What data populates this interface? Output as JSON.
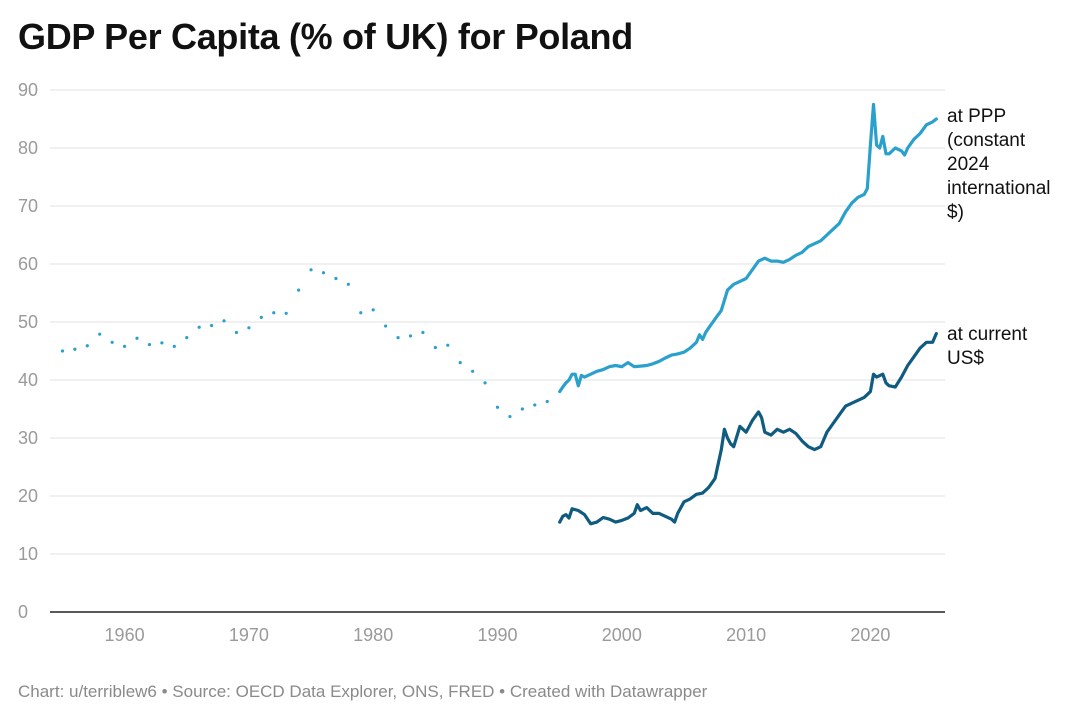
{
  "title": "GDP Per Capita (% of UK) for Poland",
  "footer": "Chart: u/terriblew6 • Source: OECD Data Explorer, ONS, FRED • Created with Datawrapper",
  "chart_data": {
    "type": "line",
    "title": "GDP Per Capita (% of UK) for Poland",
    "xlabel": "",
    "ylabel": "",
    "xlim": [
      1954,
      2026
    ],
    "ylim": [
      0,
      90
    ],
    "x_ticks": [
      1960,
      1970,
      1980,
      1990,
      2000,
      2010,
      2020
    ],
    "y_ticks": [
      0,
      10,
      20,
      30,
      40,
      50,
      60,
      70,
      80,
      90
    ],
    "grid": "horizontal",
    "series": [
      {
        "name": "at PPP (constant 2024 international $)",
        "label_lines": [
          "at PPP",
          "(constant",
          "2024",
          "international",
          "$)"
        ],
        "color": "#2aa0cd",
        "style": "dotted",
        "points": [
          [
            1955,
            45.0
          ],
          [
            1956,
            45.3
          ],
          [
            1957,
            45.9
          ],
          [
            1958,
            47.9
          ],
          [
            1959,
            46.5
          ],
          [
            1960,
            45.8
          ],
          [
            1961,
            47.2
          ],
          [
            1962,
            46.1
          ],
          [
            1963,
            46.4
          ],
          [
            1964,
            45.8
          ],
          [
            1965,
            47.3
          ],
          [
            1966,
            49.1
          ],
          [
            1967,
            49.4
          ],
          [
            1968,
            50.2
          ],
          [
            1969,
            48.2
          ],
          [
            1970,
            49.0
          ],
          [
            1971,
            50.8
          ],
          [
            1972,
            51.6
          ],
          [
            1973,
            51.5
          ],
          [
            1974,
            55.5
          ],
          [
            1975,
            59.0
          ],
          [
            1976,
            58.5
          ],
          [
            1977,
            57.5
          ],
          [
            1978,
            56.5
          ],
          [
            1979,
            51.6
          ],
          [
            1980,
            52.1
          ],
          [
            1981,
            49.3
          ],
          [
            1982,
            47.3
          ],
          [
            1983,
            47.6
          ],
          [
            1984,
            48.2
          ],
          [
            1985,
            45.6
          ],
          [
            1986,
            46.0
          ],
          [
            1987,
            43.0
          ],
          [
            1988,
            41.5
          ],
          [
            1989,
            39.5
          ],
          [
            1990,
            35.3
          ],
          [
            1991,
            33.7
          ],
          [
            1992,
            35.0
          ],
          [
            1993,
            35.7
          ],
          [
            1994,
            36.3
          ]
        ]
      },
      {
        "name": "at PPP (constant 2024 international $)",
        "color": "#2aa0cd",
        "style": "solid",
        "points": [
          [
            1995.0,
            38.0
          ],
          [
            1995.25,
            38.8
          ],
          [
            1995.5,
            39.5
          ],
          [
            1995.75,
            40.0
          ],
          [
            1996.0,
            41.0
          ],
          [
            1996.25,
            41.0
          ],
          [
            1996.5,
            39.0
          ],
          [
            1996.75,
            40.8
          ],
          [
            1997.0,
            40.5
          ],
          [
            1997.5,
            41.0
          ],
          [
            1998.0,
            41.5
          ],
          [
            1998.5,
            41.8
          ],
          [
            1999.0,
            42.3
          ],
          [
            1999.5,
            42.5
          ],
          [
            2000.0,
            42.3
          ],
          [
            2000.5,
            43.0
          ],
          [
            2001.0,
            42.3
          ],
          [
            2001.5,
            42.4
          ],
          [
            2002.0,
            42.5
          ],
          [
            2002.5,
            42.8
          ],
          [
            2003.0,
            43.2
          ],
          [
            2003.5,
            43.8
          ],
          [
            2004.0,
            44.3
          ],
          [
            2004.5,
            44.5
          ],
          [
            2005.0,
            44.8
          ],
          [
            2005.5,
            45.5
          ],
          [
            2006.0,
            46.5
          ],
          [
            2006.25,
            47.8
          ],
          [
            2006.5,
            47.0
          ],
          [
            2006.75,
            48.2
          ],
          [
            2007.0,
            49.0
          ],
          [
            2007.5,
            50.5
          ],
          [
            2008.0,
            52.0
          ],
          [
            2008.5,
            55.5
          ],
          [
            2009.0,
            56.5
          ],
          [
            2009.5,
            57.0
          ],
          [
            2010.0,
            57.5
          ],
          [
            2010.5,
            59.0
          ],
          [
            2011.0,
            60.5
          ],
          [
            2011.5,
            61.0
          ],
          [
            2012.0,
            60.5
          ],
          [
            2012.5,
            60.5
          ],
          [
            2013.0,
            60.3
          ],
          [
            2013.5,
            60.8
          ],
          [
            2014.0,
            61.5
          ],
          [
            2014.5,
            62.0
          ],
          [
            2015.0,
            63.0
          ],
          [
            2015.5,
            63.5
          ],
          [
            2016.0,
            64.0
          ],
          [
            2016.5,
            65.0
          ],
          [
            2017.0,
            66.0
          ],
          [
            2017.5,
            67.0
          ],
          [
            2018.0,
            69.0
          ],
          [
            2018.5,
            70.5
          ],
          [
            2019.0,
            71.5
          ],
          [
            2019.5,
            72.0
          ],
          [
            2019.75,
            73.0
          ],
          [
            2020.0,
            80.5
          ],
          [
            2020.25,
            87.5
          ],
          [
            2020.5,
            80.5
          ],
          [
            2020.75,
            80.0
          ],
          [
            2021.0,
            82.0
          ],
          [
            2021.25,
            79.0
          ],
          [
            2021.5,
            79.0
          ],
          [
            2022.0,
            80.0
          ],
          [
            2022.5,
            79.5
          ],
          [
            2022.75,
            78.8
          ],
          [
            2023.0,
            80.0
          ],
          [
            2023.5,
            81.5
          ],
          [
            2024.0,
            82.5
          ],
          [
            2024.5,
            84.0
          ],
          [
            2025.0,
            84.5
          ],
          [
            2025.3,
            85.0
          ]
        ]
      },
      {
        "name": "at current US$",
        "label_lines": [
          "at current",
          "US$"
        ],
        "color": "#105b80",
        "style": "solid",
        "points": [
          [
            1995.0,
            15.5
          ],
          [
            1995.25,
            16.5
          ],
          [
            1995.5,
            16.8
          ],
          [
            1995.75,
            16.2
          ],
          [
            1996.0,
            17.8
          ],
          [
            1996.5,
            17.5
          ],
          [
            1997.0,
            16.8
          ],
          [
            1997.5,
            15.2
          ],
          [
            1998.0,
            15.5
          ],
          [
            1998.5,
            16.3
          ],
          [
            1999.0,
            16.0
          ],
          [
            1999.5,
            15.5
          ],
          [
            2000.0,
            15.8
          ],
          [
            2000.5,
            16.2
          ],
          [
            2001.0,
            17.0
          ],
          [
            2001.25,
            18.5
          ],
          [
            2001.5,
            17.5
          ],
          [
            2002.0,
            18.0
          ],
          [
            2002.5,
            17.0
          ],
          [
            2003.0,
            17.0
          ],
          [
            2003.5,
            16.5
          ],
          [
            2004.0,
            16.0
          ],
          [
            2004.25,
            15.5
          ],
          [
            2004.5,
            17.0
          ],
          [
            2005.0,
            19.0
          ],
          [
            2005.5,
            19.5
          ],
          [
            2006.0,
            20.3
          ],
          [
            2006.5,
            20.5
          ],
          [
            2007.0,
            21.5
          ],
          [
            2007.5,
            23.0
          ],
          [
            2008.0,
            28.0
          ],
          [
            2008.25,
            31.5
          ],
          [
            2008.5,
            30.0
          ],
          [
            2008.75,
            29.0
          ],
          [
            2009.0,
            28.5
          ],
          [
            2009.5,
            32.0
          ],
          [
            2010.0,
            31.0
          ],
          [
            2010.5,
            33.0
          ],
          [
            2011.0,
            34.5
          ],
          [
            2011.25,
            33.5
          ],
          [
            2011.5,
            31.0
          ],
          [
            2012.0,
            30.5
          ],
          [
            2012.5,
            31.5
          ],
          [
            2013.0,
            31.0
          ],
          [
            2013.5,
            31.5
          ],
          [
            2014.0,
            30.8
          ],
          [
            2014.5,
            29.5
          ],
          [
            2015.0,
            28.5
          ],
          [
            2015.5,
            28.0
          ],
          [
            2016.0,
            28.5
          ],
          [
            2016.5,
            31.0
          ],
          [
            2017.0,
            32.5
          ],
          [
            2017.5,
            34.0
          ],
          [
            2018.0,
            35.5
          ],
          [
            2018.5,
            36.0
          ],
          [
            2019.0,
            36.5
          ],
          [
            2019.5,
            37.0
          ],
          [
            2020.0,
            38.0
          ],
          [
            2020.25,
            41.0
          ],
          [
            2020.5,
            40.5
          ],
          [
            2021.0,
            41.0
          ],
          [
            2021.25,
            39.5
          ],
          [
            2021.5,
            39.0
          ],
          [
            2022.0,
            38.8
          ],
          [
            2022.5,
            40.5
          ],
          [
            2023.0,
            42.5
          ],
          [
            2023.5,
            44.0
          ],
          [
            2024.0,
            45.5
          ],
          [
            2024.5,
            46.5
          ],
          [
            2025.0,
            46.5
          ],
          [
            2025.3,
            48.0
          ]
        ]
      }
    ]
  }
}
